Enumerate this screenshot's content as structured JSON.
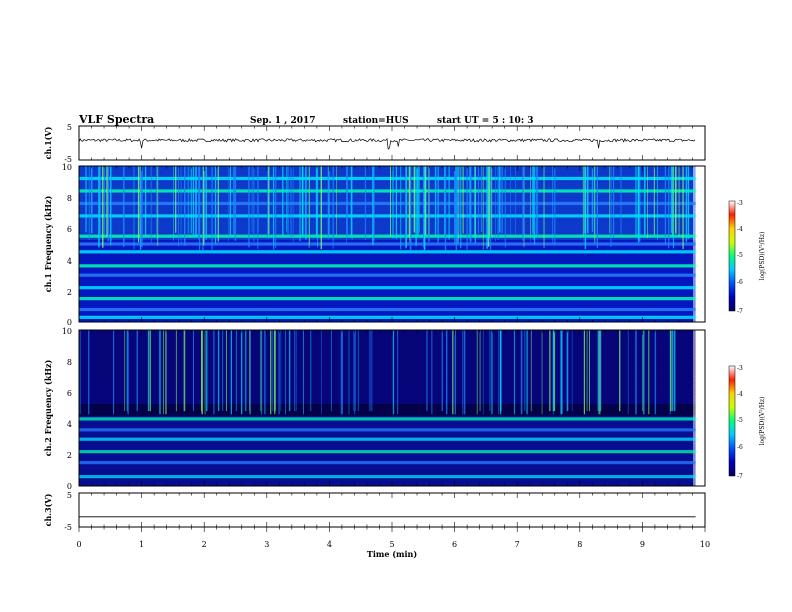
{
  "header": {
    "title": "VLF Spectra",
    "date": "Sep. 1 , 2017",
    "station": "station=HUS",
    "start": "start UT = 5 : 10: 3"
  },
  "colors": {
    "colormap": [
      "#0b0060",
      "#0000b8",
      "#0050ff",
      "#00c8ff",
      "#00ff80",
      "#c8ff00",
      "#ffd200",
      "#ff2000",
      "#ffffff"
    ]
  },
  "chart_data": [
    {
      "type": "line",
      "panel": "ch1-waveform",
      "ylabel": "ch.1(V)",
      "ylim": [
        -5,
        5
      ],
      "yticks": [
        "5",
        "-5"
      ],
      "xlim": [
        0,
        10
      ],
      "baseline_v": 0.8,
      "note_spikes_at_min": [
        1.0,
        4.95,
        5.1,
        8.3
      ]
    },
    {
      "type": "heatmap",
      "panel": "ch1-spectrogram",
      "ylabel": "ch.1 Frequency (kHz)",
      "ylim": [
        0,
        10
      ],
      "yticks": [
        "0",
        "2",
        "4",
        "6",
        "8",
        "10"
      ],
      "xlim": [
        0,
        9.85
      ],
      "colorbar_label": "log(PSD)(V²/Hz)",
      "colorbar_range": [
        -7,
        -3
      ],
      "colorbar_ticks": [
        "-3",
        "-4",
        "-5",
        "-6",
        "-7"
      ],
      "bright_bands_khz": [
        0.3,
        0.8,
        1.5,
        2.2,
        3.0,
        3.6,
        4.5,
        5.0,
        5.5,
        6.8,
        7.6,
        8.4,
        9.2
      ]
    },
    {
      "type": "heatmap",
      "panel": "ch2-spectrogram",
      "ylabel": "ch.2 Frequency (kHz)",
      "ylim": [
        0,
        10
      ],
      "yticks": [
        "0",
        "2",
        "4",
        "6",
        "8",
        "10"
      ],
      "xlim": [
        0,
        9.85
      ],
      "colorbar_label": "log(PSD)(V²/Hz)",
      "colorbar_range": [
        -7,
        -3
      ],
      "colorbar_ticks": [
        "-3",
        "-4",
        "-5",
        "-6",
        "-7"
      ],
      "bright_bands_khz": [
        0.6,
        1.5,
        2.2,
        3.0,
        3.6,
        4.3
      ]
    },
    {
      "type": "line",
      "panel": "ch3-waveform",
      "ylabel": "ch.3(V)",
      "ylim": [
        -5,
        5
      ],
      "yticks": [
        "5",
        "-5"
      ],
      "xlim": [
        0,
        10
      ],
      "baseline_v": -2.0
    }
  ],
  "xaxis": {
    "label": "Time (min)",
    "ticks": [
      "0",
      "1",
      "2",
      "3",
      "4",
      "5",
      "6",
      "7",
      "8",
      "9",
      "10"
    ]
  }
}
